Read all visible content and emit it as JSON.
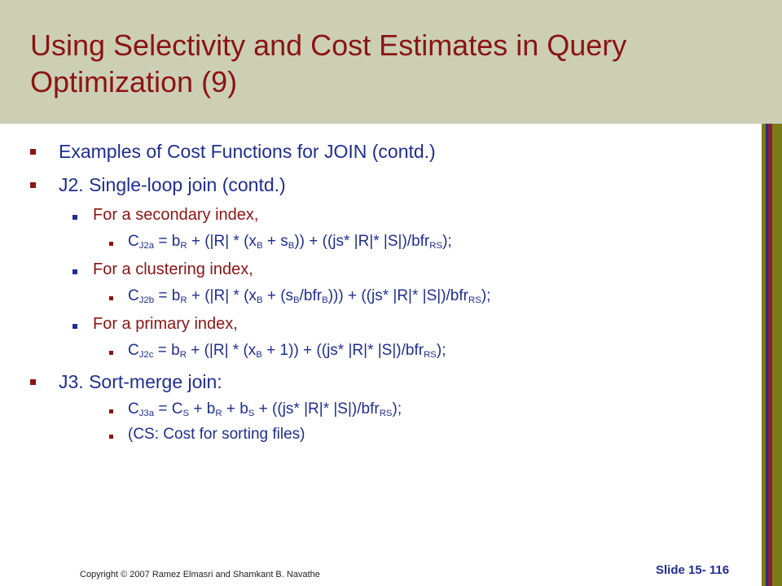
{
  "title": "Using Selectivity and Cost Estimates in Query Optimization (9)",
  "colors": {
    "header_bg": "#cccfb4",
    "title": "#8b1414",
    "level1_text": "#1f2e8f",
    "level2_text": "#8b1414",
    "level3_text": "#1f2e8f"
  },
  "bullets": {
    "b1": "Examples of Cost Functions for JOIN (contd.)",
    "b2": "J2. Single-loop join (contd.)",
    "b2_1": "For a secondary index,",
    "f1": {
      "c": "C",
      "sub": "J2a",
      "t1": " =  b",
      "s1": "R",
      "t2": " + (|R| * (x",
      "s2": "B",
      "t3": " + s",
      "s3": "B",
      "t4": ")) + ((js* |R|* |S|)/bfr",
      "s4": "RS",
      "t5": ");"
    },
    "b2_2": "For a clustering index,",
    "f2": {
      "c": "C",
      "sub": "J2b",
      "t1": " =  b",
      "s1": "R",
      "t2": " + (|R| * (x",
      "s2": "B",
      "t3": " + (s",
      "s3": "B",
      "t4": "/bfr",
      "s4": "B",
      "t5": "))) + ((js* |R|* |S|)/bfr",
      "s5": "RS",
      "t6": ");"
    },
    "b2_3": "For a primary index,",
    "f3": {
      "c": "C",
      "sub": "J2c",
      "t1": " =  b",
      "s1": "R",
      "t2": " + (|R| * (x",
      "s2": "B",
      "t3": " + 1)) + ((js* |R|* |S|)/bfr",
      "s3": "RS",
      "t4": ");"
    },
    "b3": "J3. Sort-merge join:",
    "f4": {
      "c": "C",
      "sub": "J3a",
      "t1": " =  C",
      "s1": "S",
      "t2": " + b",
      "s2": "R",
      "t3": " + b",
      "s3": "S",
      "t4": " + ((js* |R|* |S|)/bfr",
      "s4": "RS",
      "t5": ");"
    },
    "b3_2": "(CS: Cost for sorting files)"
  },
  "footer": {
    "copyright": "Copyright © 2007 Ramez Elmasri and Shamkant B. Navathe",
    "slide": "Slide 15- 116"
  }
}
